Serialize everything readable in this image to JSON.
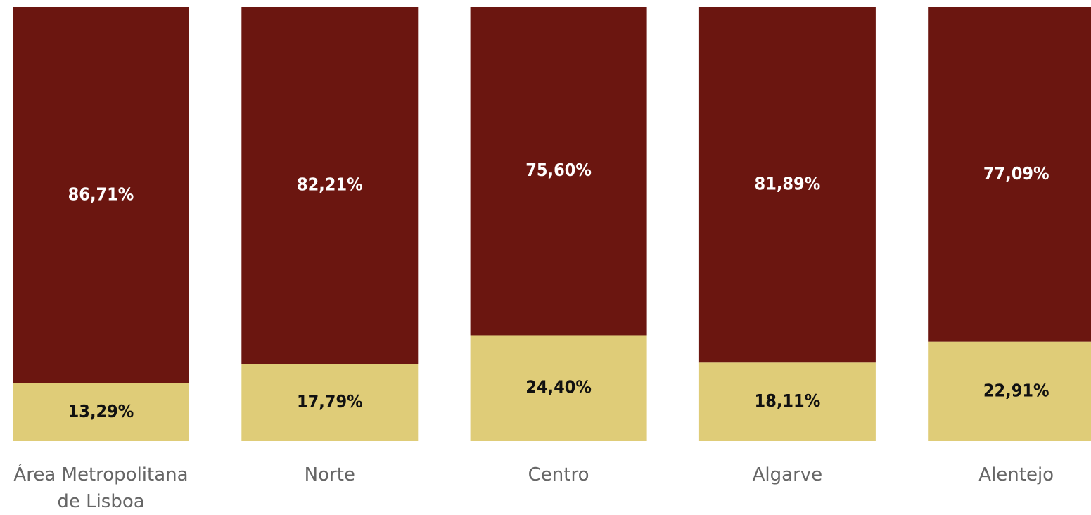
{
  "chart_data": {
    "type": "stacked_bar",
    "categories": [
      "Área Metropolitana de Lisboa",
      "Norte",
      "Centro",
      "Algarve",
      "Alentejo"
    ],
    "ylim": [
      0,
      100
    ],
    "series": [
      {
        "color": "#dfcc78",
        "values": [
          13.29,
          17.79,
          24.4,
          18.11,
          22.91
        ],
        "value_labels": [
          "13,29%",
          "17,79%",
          "24,40%",
          "18,11%",
          "22,91%"
        ]
      },
      {
        "color": "#6b1610",
        "values": [
          86.71,
          82.21,
          75.6,
          81.89,
          77.09
        ],
        "value_labels": [
          "86,71%",
          "82,21%",
          "75,60%",
          "81,89%",
          "77,09%"
        ]
      }
    ]
  }
}
